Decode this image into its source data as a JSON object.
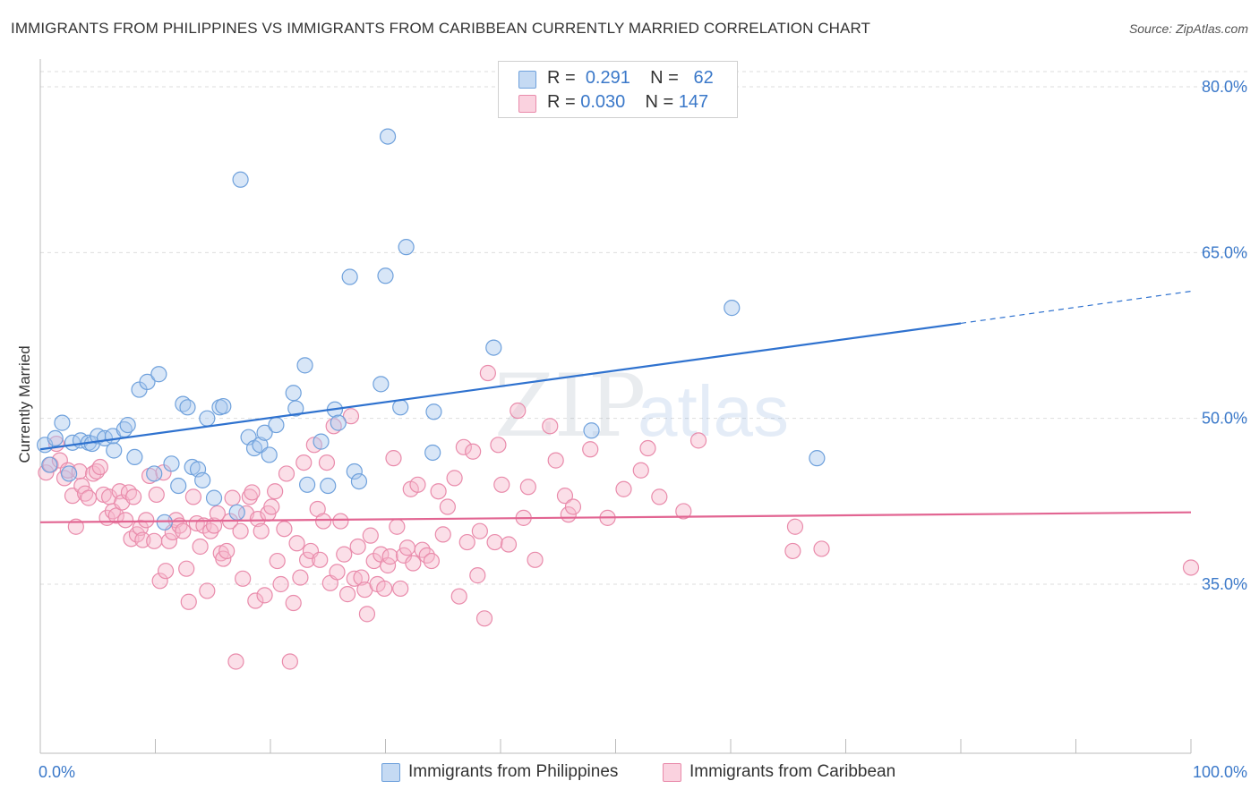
{
  "title": "IMMIGRANTS FROM PHILIPPINES VS IMMIGRANTS FROM CARIBBEAN CURRENTLY MARRIED CORRELATION CHART",
  "source": "Source: ZipAtlas.com",
  "watermark": {
    "zip": "ZIP",
    "atlas": "atlas"
  },
  "legend": {
    "rows": [
      {
        "r_label": "R =",
        "r_value": "0.291",
        "n_label": "N =",
        "n_value": "62",
        "color": "#a8c8ee"
      },
      {
        "r_label": "R =",
        "r_value": "0.030",
        "n_label": "N =",
        "n_value": "147",
        "color": "#f6b8cc"
      }
    ]
  },
  "bottom_legend": [
    {
      "label": "Immigrants from Philippines",
      "color": "#a8c8ee"
    },
    {
      "label": "Immigrants from Caribbean",
      "color": "#f6b8cc"
    }
  ],
  "chart_data": {
    "type": "scatter",
    "title": "IMMIGRANTS FROM PHILIPPINES VS IMMIGRANTS FROM CARIBBEAN CURRENTLY MARRIED CORRELATION CHART",
    "xlabel": "",
    "ylabel": "Currently Married",
    "xlim": [
      0,
      100
    ],
    "ylim": [
      20,
      82
    ],
    "x_tick_labels": [
      "0.0%",
      "100.0%"
    ],
    "y_ticks": [
      35,
      50,
      65,
      80
    ],
    "y_tick_labels": [
      "35.0%",
      "50.0%",
      "65.0%",
      "80.0%"
    ],
    "grid": true,
    "legend_position": "top-center",
    "colors": {
      "blue_fill": "#a8c8ee",
      "blue_stroke": "#6fa1dc",
      "blue_line": "#2f72cf",
      "pink_fill": "#f6b8cc",
      "pink_stroke": "#e98bab",
      "pink_line": "#e26592",
      "tick_label": "#3a78c9",
      "grid": "#dddddd"
    },
    "series": [
      {
        "name": "Immigrants from Philippines",
        "trend": {
          "x": [
            0,
            80,
            100
          ],
          "y": [
            47.2,
            58.6,
            61.5
          ],
          "solid_until": 80
        },
        "points": [
          [
            0.4,
            47.6
          ],
          [
            0.8,
            45.8
          ],
          [
            1.3,
            48.2
          ],
          [
            1.9,
            49.6
          ],
          [
            2.5,
            45.0
          ],
          [
            2.8,
            47.8
          ],
          [
            3.5,
            48.0
          ],
          [
            4.2,
            47.8
          ],
          [
            4.5,
            47.7
          ],
          [
            5.0,
            48.4
          ],
          [
            5.6,
            48.2
          ],
          [
            6.3,
            48.4
          ],
          [
            6.4,
            47.1
          ],
          [
            7.3,
            49.0
          ],
          [
            7.6,
            49.4
          ],
          [
            8.2,
            46.5
          ],
          [
            8.6,
            52.6
          ],
          [
            9.3,
            53.3
          ],
          [
            9.9,
            45.0
          ],
          [
            10.3,
            54.0
          ],
          [
            10.8,
            40.6
          ],
          [
            11.4,
            45.9
          ],
          [
            12.0,
            43.9
          ],
          [
            12.4,
            51.3
          ],
          [
            12.8,
            51.0
          ],
          [
            13.2,
            45.6
          ],
          [
            13.7,
            45.4
          ],
          [
            14.1,
            44.4
          ],
          [
            14.5,
            50.0
          ],
          [
            15.1,
            42.8
          ],
          [
            15.6,
            51.0
          ],
          [
            15.9,
            51.1
          ],
          [
            17.1,
            41.5
          ],
          [
            17.4,
            71.6
          ],
          [
            18.1,
            48.3
          ],
          [
            18.6,
            47.3
          ],
          [
            19.1,
            47.6
          ],
          [
            19.5,
            48.7
          ],
          [
            19.9,
            46.7
          ],
          [
            20.5,
            49.4
          ],
          [
            22.0,
            52.3
          ],
          [
            22.2,
            50.9
          ],
          [
            23.0,
            54.8
          ],
          [
            23.2,
            44.0
          ],
          [
            24.4,
            47.9
          ],
          [
            25.0,
            43.9
          ],
          [
            25.6,
            50.8
          ],
          [
            25.9,
            49.6
          ],
          [
            26.9,
            62.8
          ],
          [
            27.3,
            45.2
          ],
          [
            27.7,
            44.3
          ],
          [
            29.6,
            53.1
          ],
          [
            30.0,
            62.9
          ],
          [
            30.2,
            75.5
          ],
          [
            31.3,
            51.0
          ],
          [
            31.8,
            65.5
          ],
          [
            34.2,
            50.6
          ],
          [
            34.1,
            46.9
          ],
          [
            39.4,
            56.4
          ],
          [
            47.9,
            48.9
          ],
          [
            60.1,
            60.0
          ],
          [
            67.5,
            46.4
          ]
        ]
      },
      {
        "name": "Immigrants from Caribbean",
        "trend": {
          "x": [
            0,
            100
          ],
          "y": [
            40.6,
            41.5
          ],
          "solid_until": 100
        },
        "points": [
          [
            0.5,
            45.1
          ],
          [
            0.9,
            45.8
          ],
          [
            1.4,
            47.7
          ],
          [
            1.7,
            46.2
          ],
          [
            2.1,
            44.6
          ],
          [
            2.4,
            45.3
          ],
          [
            2.8,
            43.0
          ],
          [
            3.1,
            40.2
          ],
          [
            3.4,
            45.2
          ],
          [
            3.6,
            43.9
          ],
          [
            3.9,
            43.2
          ],
          [
            4.2,
            42.8
          ],
          [
            4.6,
            45.0
          ],
          [
            4.9,
            45.2
          ],
          [
            5.2,
            45.6
          ],
          [
            5.5,
            43.1
          ],
          [
            5.8,
            41.0
          ],
          [
            6.0,
            42.9
          ],
          [
            6.3,
            41.6
          ],
          [
            6.6,
            41.2
          ],
          [
            6.9,
            43.4
          ],
          [
            7.1,
            42.4
          ],
          [
            7.4,
            40.8
          ],
          [
            7.7,
            43.3
          ],
          [
            7.9,
            39.1
          ],
          [
            8.1,
            42.9
          ],
          [
            8.4,
            39.5
          ],
          [
            8.7,
            40.1
          ],
          [
            8.9,
            39.0
          ],
          [
            9.2,
            40.8
          ],
          [
            9.5,
            44.8
          ],
          [
            9.9,
            38.9
          ],
          [
            10.1,
            43.1
          ],
          [
            10.4,
            35.3
          ],
          [
            10.7,
            45.1
          ],
          [
            10.9,
            36.2
          ],
          [
            11.2,
            38.9
          ],
          [
            11.5,
            39.7
          ],
          [
            11.8,
            40.8
          ],
          [
            12.1,
            40.3
          ],
          [
            12.4,
            39.8
          ],
          [
            12.7,
            36.4
          ],
          [
            12.9,
            33.4
          ],
          [
            13.3,
            42.9
          ],
          [
            13.6,
            40.5
          ],
          [
            13.9,
            38.4
          ],
          [
            14.2,
            40.3
          ],
          [
            14.5,
            34.4
          ],
          [
            14.8,
            39.8
          ],
          [
            15.1,
            40.3
          ],
          [
            15.4,
            41.4
          ],
          [
            15.7,
            37.8
          ],
          [
            15.9,
            37.3
          ],
          [
            16.2,
            38.0
          ],
          [
            16.5,
            40.7
          ],
          [
            16.7,
            42.8
          ],
          [
            17.0,
            28.0
          ],
          [
            17.4,
            39.8
          ],
          [
            17.6,
            35.5
          ],
          [
            17.9,
            41.4
          ],
          [
            18.2,
            42.9
          ],
          [
            18.4,
            43.3
          ],
          [
            18.7,
            33.5
          ],
          [
            18.9,
            40.9
          ],
          [
            19.2,
            39.8
          ],
          [
            19.5,
            34.0
          ],
          [
            19.8,
            41.4
          ],
          [
            20.1,
            42.0
          ],
          [
            20.4,
            43.4
          ],
          [
            20.6,
            37.1
          ],
          [
            20.9,
            35.0
          ],
          [
            21.2,
            40.0
          ],
          [
            21.4,
            45.0
          ],
          [
            21.7,
            28.0
          ],
          [
            22.0,
            33.3
          ],
          [
            22.3,
            38.7
          ],
          [
            22.6,
            35.6
          ],
          [
            22.9,
            46.0
          ],
          [
            23.2,
            37.2
          ],
          [
            23.5,
            38.0
          ],
          [
            23.8,
            47.6
          ],
          [
            24.1,
            41.8
          ],
          [
            24.3,
            37.2
          ],
          [
            24.6,
            40.7
          ],
          [
            24.9,
            46.0
          ],
          [
            25.2,
            35.1
          ],
          [
            25.5,
            49.3
          ],
          [
            25.8,
            36.1
          ],
          [
            26.1,
            40.7
          ],
          [
            26.4,
            37.7
          ],
          [
            26.7,
            34.1
          ],
          [
            27.0,
            50.2
          ],
          [
            27.3,
            35.5
          ],
          [
            27.6,
            38.4
          ],
          [
            27.9,
            35.6
          ],
          [
            28.2,
            34.5
          ],
          [
            28.4,
            32.3
          ],
          [
            28.7,
            39.4
          ],
          [
            29.0,
            37.1
          ],
          [
            29.3,
            35.0
          ],
          [
            29.6,
            37.7
          ],
          [
            29.9,
            34.6
          ],
          [
            30.2,
            36.7
          ],
          [
            30.4,
            37.5
          ],
          [
            30.7,
            46.4
          ],
          [
            31.0,
            40.2
          ],
          [
            31.3,
            34.6
          ],
          [
            31.6,
            37.6
          ],
          [
            31.9,
            38.3
          ],
          [
            32.2,
            43.6
          ],
          [
            32.4,
            36.9
          ],
          [
            32.8,
            44.0
          ],
          [
            33.2,
            38.1
          ],
          [
            33.6,
            37.6
          ],
          [
            34.0,
            37.1
          ],
          [
            34.6,
            43.4
          ],
          [
            35.0,
            39.5
          ],
          [
            35.4,
            42.0
          ],
          [
            36.0,
            44.6
          ],
          [
            36.4,
            33.9
          ],
          [
            36.8,
            47.4
          ],
          [
            37.1,
            38.8
          ],
          [
            37.6,
            47.0
          ],
          [
            38.0,
            35.8
          ],
          [
            38.2,
            39.8
          ],
          [
            38.6,
            31.9
          ],
          [
            38.9,
            54.1
          ],
          [
            39.5,
            38.8
          ],
          [
            39.8,
            47.6
          ],
          [
            40.1,
            44.0
          ],
          [
            40.7,
            38.6
          ],
          [
            41.5,
            50.7
          ],
          [
            42.0,
            41.0
          ],
          [
            42.4,
            43.8
          ],
          [
            43.0,
            37.2
          ],
          [
            44.3,
            49.3
          ],
          [
            44.8,
            46.2
          ],
          [
            45.6,
            43.0
          ],
          [
            45.9,
            41.3
          ],
          [
            46.3,
            42.0
          ],
          [
            47.8,
            47.2
          ],
          [
            49.3,
            41.0
          ],
          [
            50.7,
            43.6
          ],
          [
            52.2,
            45.3
          ],
          [
            52.8,
            47.3
          ],
          [
            53.8,
            42.9
          ],
          [
            55.9,
            41.6
          ],
          [
            57.2,
            48.0
          ],
          [
            65.4,
            38.0
          ],
          [
            65.6,
            40.2
          ],
          [
            67.9,
            38.2
          ],
          [
            100.0,
            36.5
          ]
        ]
      }
    ]
  }
}
